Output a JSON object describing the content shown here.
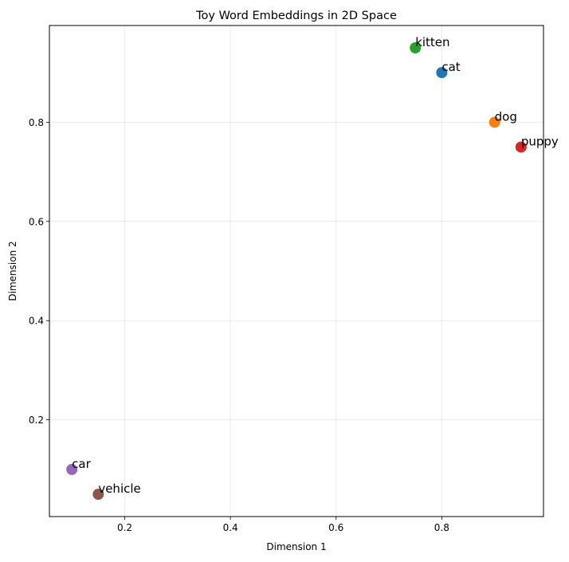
{
  "chart_data": {
    "type": "scatter",
    "title": "Toy Word Embeddings in 2D Space",
    "xlabel": "Dimension 1",
    "ylabel": "Dimension 2",
    "xlim": [
      0.0575,
      0.9925
    ],
    "ylim": [
      0.005,
      0.995
    ],
    "xticks": [
      0.2,
      0.4,
      0.6,
      0.8
    ],
    "yticks": [
      0.2,
      0.4,
      0.6,
      0.8
    ],
    "xtick_labels": [
      "0.2",
      "0.4",
      "0.6",
      "0.8"
    ],
    "ytick_labels": [
      "0.2",
      "0.4",
      "0.6",
      "0.8"
    ],
    "grid": true,
    "points": [
      {
        "label": "cat",
        "x": 0.8,
        "y": 0.9,
        "color": "#1f77b4"
      },
      {
        "label": "dog",
        "x": 0.9,
        "y": 0.8,
        "color": "#ff7f0e"
      },
      {
        "label": "kitten",
        "x": 0.75,
        "y": 0.95,
        "color": "#2ca02c"
      },
      {
        "label": "puppy",
        "x": 0.95,
        "y": 0.75,
        "color": "#d62728"
      },
      {
        "label": "car",
        "x": 0.1,
        "y": 0.1,
        "color": "#9467bd"
      },
      {
        "label": "vehicle",
        "x": 0.15,
        "y": 0.05,
        "color": "#8c564b"
      }
    ]
  }
}
